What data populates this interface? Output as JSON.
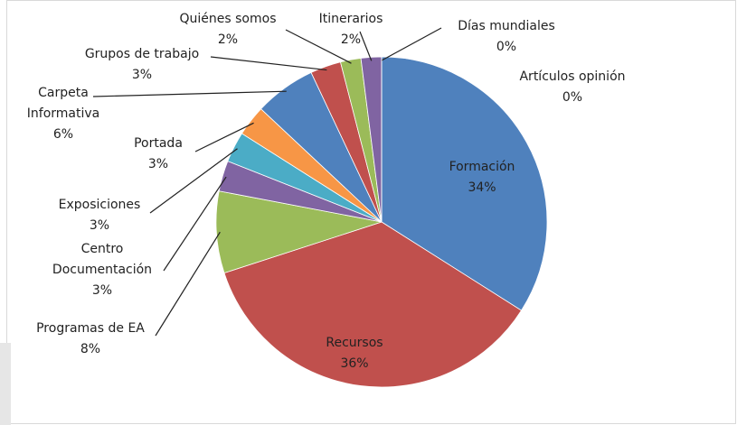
{
  "chart_data": {
    "type": "pie",
    "categories": [
      "Formación",
      "Recursos",
      "Programas de EA",
      "Centro Documentación",
      "Exposiciones",
      "Portada",
      "Carpeta Informativa",
      "Grupos de trabajo",
      "Quiénes somos",
      "Itinerarios",
      "Días mundiales",
      "Artículos opinión"
    ],
    "values": [
      34,
      36,
      8,
      3,
      3,
      3,
      6,
      3,
      2,
      2,
      0,
      0
    ],
    "value_labels": [
      "34%",
      "36%",
      "8%",
      "3%",
      "3%",
      "3%",
      "6%",
      "3%",
      "2%",
      "2%",
      "0%",
      "0%"
    ],
    "colors": [
      "#4f81bd",
      "#c0504d",
      "#9bbb59",
      "#8064a2",
      "#4bacc6",
      "#f79646",
      "#4f81bd",
      "#c0504d",
      "#9bbb59",
      "#8064a2",
      "#4bacc6",
      "#f79646"
    ]
  }
}
